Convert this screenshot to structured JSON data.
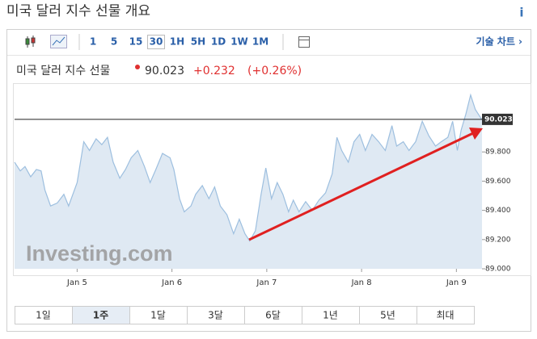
{
  "header": {
    "title": "미국 달러 지수 선물 개요",
    "info": "i"
  },
  "toolbar": {
    "intervals": [
      "1",
      "5",
      "15",
      "30",
      "1H",
      "5H",
      "1D",
      "1W",
      "1M"
    ],
    "selected": "30",
    "link": "기술 차트 ›"
  },
  "quote": {
    "name": "미국 달러 지수 선물",
    "price": "90.023",
    "change": "+0.232",
    "change_pct": "(+0.26%)"
  },
  "chart_data": {
    "type": "area",
    "watermark": "Investing.com",
    "x": [
      4.34,
      4.4,
      4.45,
      4.51,
      4.57,
      4.62,
      4.66,
      4.72,
      4.79,
      4.86,
      4.91,
      5.0,
      5.07,
      5.13,
      5.2,
      5.26,
      5.32,
      5.38,
      5.45,
      5.51,
      5.57,
      5.64,
      5.71,
      5.77,
      5.83,
      5.9,
      5.98,
      6.02,
      6.08,
      6.13,
      6.2,
      6.25,
      6.32,
      6.39,
      6.45,
      6.51,
      6.58,
      6.65,
      6.71,
      6.77,
      6.82,
      6.88,
      6.94,
      6.99,
      7.05,
      7.11,
      7.17,
      7.23,
      7.28,
      7.34,
      7.41,
      7.48,
      7.55,
      7.62,
      7.69,
      7.74,
      7.79,
      7.86,
      7.92,
      7.98,
      8.04,
      8.11,
      8.18,
      8.25,
      8.32,
      8.37,
      8.44,
      8.5,
      8.57,
      8.64,
      8.71,
      8.78,
      8.84,
      8.91,
      8.96,
      9.01,
      9.05,
      9.1,
      9.15,
      9.2,
      9.27
    ],
    "series": [
      {
        "name": "미국 달러 지수 선물",
        "color": "#9dbfdf",
        "fill": "#dfe9f3",
        "values": [
          89.73,
          89.67,
          89.7,
          89.63,
          89.68,
          89.67,
          89.54,
          89.43,
          89.45,
          89.51,
          89.43,
          89.59,
          89.87,
          89.81,
          89.89,
          89.85,
          89.9,
          89.73,
          89.62,
          89.68,
          89.76,
          89.81,
          89.7,
          89.59,
          89.68,
          89.79,
          89.76,
          89.68,
          89.48,
          89.39,
          89.43,
          89.51,
          89.57,
          89.48,
          89.56,
          89.43,
          89.37,
          89.24,
          89.34,
          89.24,
          89.19,
          89.26,
          89.51,
          89.69,
          89.48,
          89.59,
          89.51,
          89.39,
          89.47,
          89.39,
          89.46,
          89.4,
          89.47,
          89.52,
          89.65,
          89.9,
          89.81,
          89.73,
          89.87,
          89.92,
          89.81,
          89.92,
          89.87,
          89.81,
          89.98,
          89.84,
          89.87,
          89.81,
          89.87,
          90.01,
          89.91,
          89.84,
          89.87,
          89.9,
          90.01,
          89.81,
          89.95,
          90.06,
          90.19,
          90.09,
          90.02
        ]
      }
    ],
    "reference_line": {
      "value": 90.023,
      "label": "90.023"
    },
    "xlim": [
      4.34,
      9.27
    ],
    "xticks": [
      {
        "value": 5,
        "label": "Jan 5"
      },
      {
        "value": 6,
        "label": "Jan 6"
      },
      {
        "value": 7,
        "label": "Jan 7"
      },
      {
        "value": 8,
        "label": "Jan 8"
      },
      {
        "value": 9,
        "label": "Jan 9"
      }
    ],
    "ylim": [
      89.0,
      90.26
    ],
    "yticks": [
      {
        "value": 89.0,
        "label": "89.000"
      },
      {
        "value": 89.2,
        "label": "89.200"
      },
      {
        "value": 89.4,
        "label": "89.400"
      },
      {
        "value": 89.6,
        "label": "89.600"
      },
      {
        "value": 89.8,
        "label": "89.800"
      }
    ]
  },
  "ranges": {
    "items": [
      "1일",
      "1주",
      "1달",
      "3달",
      "6달",
      "1년",
      "5년",
      "최대"
    ],
    "selected": "1주"
  }
}
